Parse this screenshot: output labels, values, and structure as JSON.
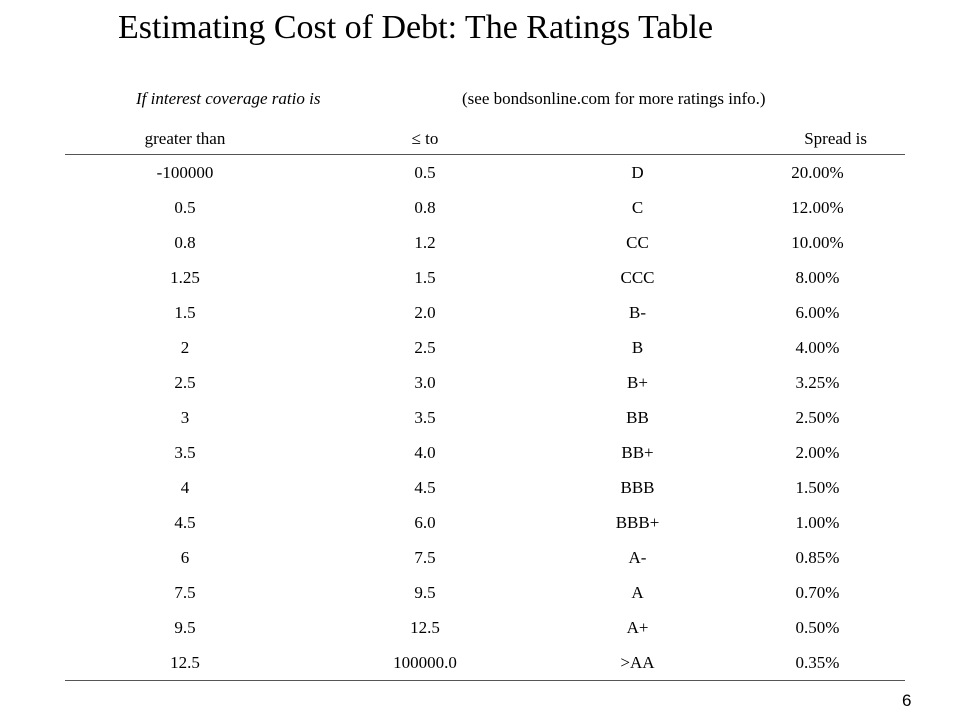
{
  "slide": {
    "title": "Estimating Cost of Debt: The Ratings Table",
    "subheader_left": "If interest coverage ratio is",
    "subheader_right": "(see bondsonline.com for more ratings info.)",
    "page_number": "6"
  },
  "table": {
    "headers": [
      "greater than",
      "≤ to",
      "",
      "Spread is"
    ],
    "rows": [
      [
        "-100000",
        "0.5",
        "D",
        "20.00%"
      ],
      [
        "0.5",
        "0.8",
        "C",
        "12.00%"
      ],
      [
        "0.8",
        "1.2",
        "CC",
        "10.00%"
      ],
      [
        "1.25",
        "1.5",
        "CCC",
        "8.00%"
      ],
      [
        "1.5",
        "2.0",
        "B-",
        "6.00%"
      ],
      [
        "2",
        "2.5",
        "B",
        "4.00%"
      ],
      [
        "2.5",
        "3.0",
        "B+",
        "3.25%"
      ],
      [
        "3",
        "3.5",
        "BB",
        "2.50%"
      ],
      [
        "3.5",
        "4.0",
        "BB+",
        "2.00%"
      ],
      [
        "4",
        "4.5",
        "BBB",
        "1.50%"
      ],
      [
        "4.5",
        "6.0",
        "BBB+",
        "1.00%"
      ],
      [
        "6",
        "7.5",
        "A-",
        "0.85%"
      ],
      [
        "7.5",
        "9.5",
        "A",
        "0.70%"
      ],
      [
        "9.5",
        "12.5",
        "A+",
        "0.50%"
      ],
      [
        "12.5",
        "100000.0",
        ">AA",
        "0.35%"
      ]
    ]
  }
}
